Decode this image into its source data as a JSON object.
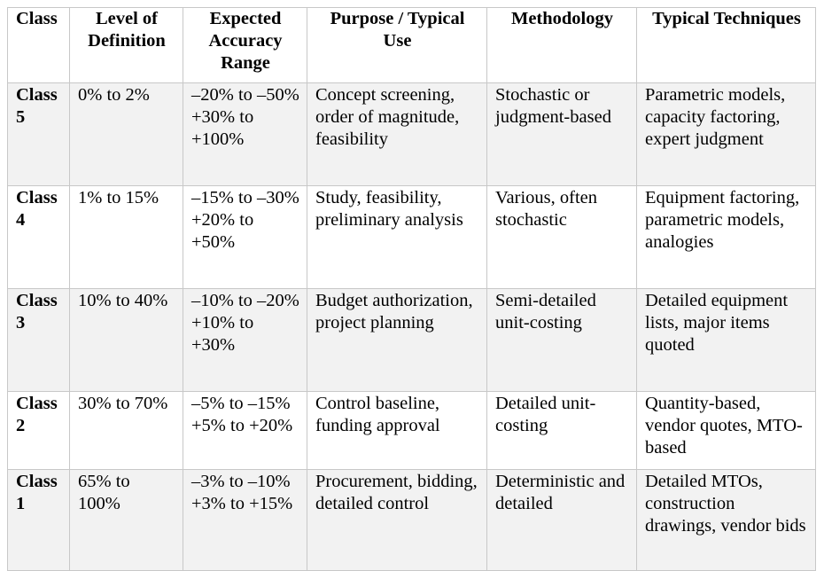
{
  "table": {
    "headers": [
      "Class",
      "Level of Definition",
      "Expected Accuracy Range",
      "Purpose / Typical Use",
      "Methodology",
      "Typical Techniques"
    ],
    "rows": [
      {
        "class": "Class 5",
        "definition": "0% to 2%",
        "accuracy_low": "–20% to –50%",
        "accuracy_high": "+30% to +100%",
        "purpose": "Concept screening, order of magnitude, feasibility",
        "methodology": "Stochastic or judgment-based",
        "techniques": "Parametric models, capacity factoring, expert judgment"
      },
      {
        "class": "Class 4",
        "definition": "1% to 15%",
        "accuracy_low": "–15% to –30%",
        "accuracy_high": "+20% to +50%",
        "purpose": "Study, feasibility, preliminary analysis",
        "methodology": "Various, often stochastic",
        "techniques": "Equipment factoring, parametric models, analogies"
      },
      {
        "class": "Class 3",
        "definition": "10% to 40%",
        "accuracy_low": "–10% to –20%",
        "accuracy_high": "+10% to +30%",
        "purpose": "Budget authorization, project planning",
        "methodology": "Semi-detailed unit-costing",
        "techniques": "Detailed equipment lists, major items quoted"
      },
      {
        "class": "Class 2",
        "definition": "30% to 70%",
        "accuracy_low": "–5% to –15%",
        "accuracy_high": "+5% to +20%",
        "purpose": "Control baseline, funding approval",
        "methodology": "Detailed unit-costing",
        "techniques": "Quantity-based, vendor quotes, MTO-based"
      },
      {
        "class": "Class 1",
        "definition": "65% to 100%",
        "accuracy_low": "–3% to –10%",
        "accuracy_high": "+3% to +15%",
        "purpose": "Procurement, bidding, detailed control",
        "methodology": "Deterministic and detailed",
        "techniques": "Detailed MTOs, construction drawings, vendor bids"
      }
    ]
  }
}
